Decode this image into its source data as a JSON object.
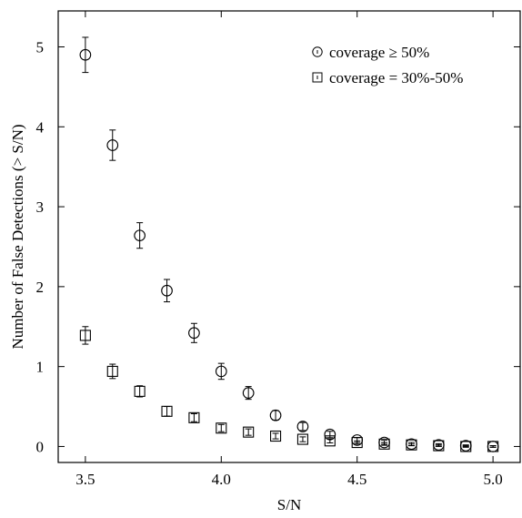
{
  "chart_data": {
    "type": "scatter",
    "title": "",
    "xlabel": "S/N",
    "ylabel": "Number of False Detections (> S/N)",
    "xlim": [
      3.4,
      5.1
    ],
    "ylim": [
      -0.2,
      5.45
    ],
    "xticks": [
      3.5,
      4.0,
      4.5,
      5.0
    ],
    "xtick_labels": [
      "3.5",
      "4.0",
      "4.5",
      "5.0"
    ],
    "yticks": [
      0,
      1,
      2,
      3,
      4,
      5
    ],
    "ytick_labels": [
      "0",
      "1",
      "2",
      "3",
      "4",
      "5"
    ],
    "grid": false,
    "legend_position": "top-right",
    "series": [
      {
        "name": "coverage ≥ 50%",
        "marker": "circle",
        "x": [
          3.5,
          3.6,
          3.7,
          3.8,
          3.9,
          4.0,
          4.1,
          4.2,
          4.3,
          4.4,
          4.5,
          4.6,
          4.7,
          4.8,
          4.9,
          5.0
        ],
        "y": [
          4.9,
          3.77,
          2.64,
          1.95,
          1.42,
          0.94,
          0.67,
          0.39,
          0.25,
          0.15,
          0.08,
          0.05,
          0.03,
          0.02,
          0.01,
          0.0
        ],
        "yerr": [
          0.22,
          0.19,
          0.16,
          0.14,
          0.12,
          0.1,
          0.08,
          0.06,
          0.05,
          0.04,
          0.03,
          0.025,
          0.02,
          0.015,
          0.01,
          0.01
        ]
      },
      {
        "name": "coverage = 30%-50%",
        "marker": "square",
        "x": [
          3.5,
          3.6,
          3.7,
          3.8,
          3.9,
          4.0,
          4.1,
          4.2,
          4.3,
          4.4,
          4.5,
          4.6,
          4.7,
          4.8,
          4.9,
          5.0
        ],
        "y": [
          1.39,
          0.94,
          0.69,
          0.44,
          0.36,
          0.23,
          0.18,
          0.13,
          0.09,
          0.07,
          0.05,
          0.03,
          0.02,
          0.01,
          0.0,
          0.0
        ],
        "yerr": [
          0.11,
          0.09,
          0.07,
          0.06,
          0.05,
          0.045,
          0.04,
          0.035,
          0.03,
          0.025,
          0.02,
          0.015,
          0.01,
          0.01,
          0.01,
          0.01
        ]
      }
    ]
  }
}
